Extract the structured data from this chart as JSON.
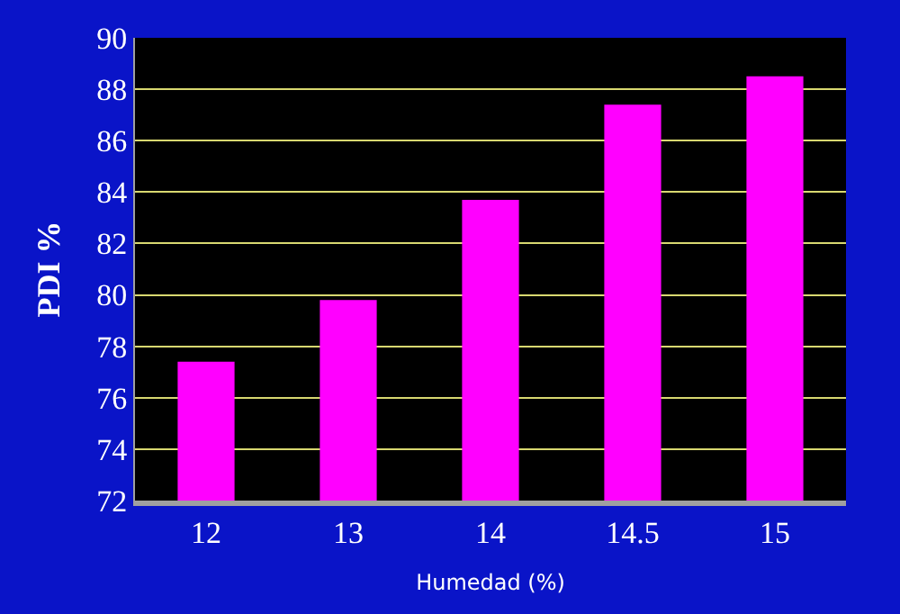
{
  "chart_data": {
    "type": "bar",
    "xlabel": "Humedad (%)",
    "ylabel": "PDI %",
    "categories": [
      "12",
      "13",
      "14",
      "14.5",
      "15"
    ],
    "values": [
      77.4,
      79.8,
      83.7,
      87.4,
      88.5
    ],
    "color": "#ff00ff",
    "ylim": [
      72,
      90
    ],
    "yticks": [
      72,
      74,
      76,
      78,
      80,
      82,
      84,
      86,
      88,
      90
    ],
    "grid": "y"
  }
}
